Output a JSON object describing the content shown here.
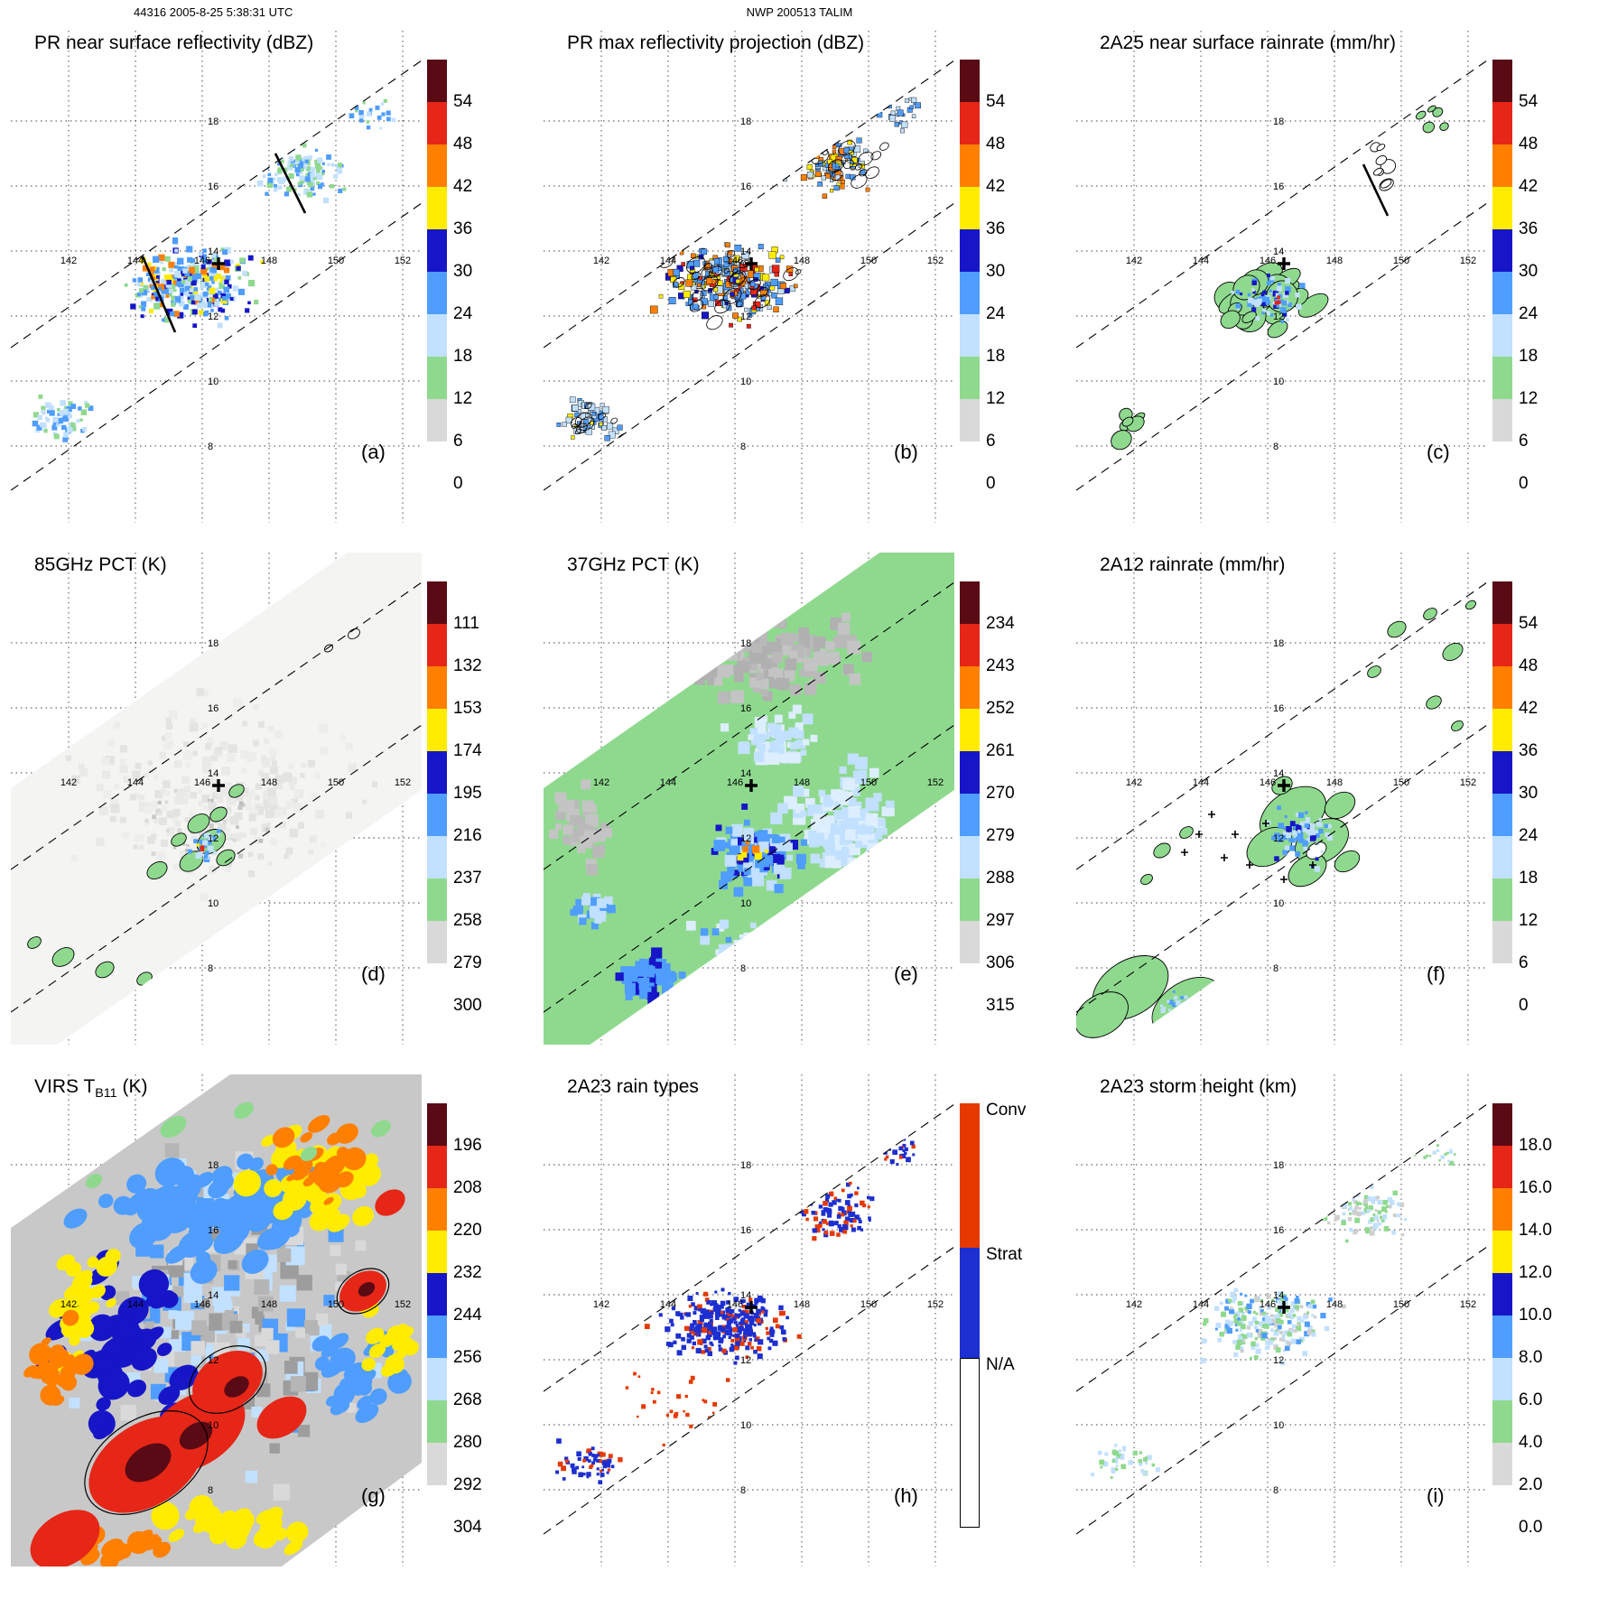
{
  "header": {
    "left": "44316 2005-8-25 5:38:31 UTC",
    "center": "NWP 200513 TALIM"
  },
  "palette": [
    "#5a0a14",
    "#e62617",
    "#ff8000",
    "#ffec00",
    "#1616c8",
    "#4f9dff",
    "#c2e0ff",
    "#8fd98f",
    "#d9d9d9",
    "#ffffff"
  ],
  "axes": {
    "lon": [
      "142",
      "144",
      "146",
      "148",
      "150",
      "152"
    ],
    "lat": [
      "18",
      "16",
      "14",
      "12",
      "10",
      "8"
    ]
  },
  "panels": [
    {
      "id": "a",
      "label": "(a)",
      "title_prefix": "PR near surface reflectivity (dBZ)",
      "title_sub": "",
      "title_suffix": "",
      "colorbar": {
        "labels": [
          "54",
          "48",
          "42",
          "36",
          "30",
          "24",
          "18",
          "12",
          "6",
          "0"
        ]
      }
    },
    {
      "id": "b",
      "label": "(b)",
      "title_prefix": "PR max reflectivity projection (dBZ)",
      "title_sub": "",
      "title_suffix": "",
      "colorbar": {
        "labels": [
          "54",
          "48",
          "42",
          "36",
          "30",
          "24",
          "18",
          "12",
          "6",
          "0"
        ]
      }
    },
    {
      "id": "c",
      "label": "(c)",
      "title_prefix": "2A25 near surface rainrate (mm/hr)",
      "title_sub": "",
      "title_suffix": "",
      "colorbar": {
        "labels": [
          "54",
          "48",
          "42",
          "36",
          "30",
          "24",
          "18",
          "12",
          "6",
          "0"
        ]
      }
    },
    {
      "id": "d",
      "label": "(d)",
      "title_prefix": "85GHz PCT (K)",
      "title_sub": "",
      "title_suffix": "",
      "colorbar": {
        "labels": [
          "111",
          "132",
          "153",
          "174",
          "195",
          "216",
          "237",
          "258",
          "279",
          "300"
        ]
      }
    },
    {
      "id": "e",
      "label": "(e)",
      "title_prefix": "37GHz PCT (K)",
      "title_sub": "",
      "title_suffix": "",
      "colorbar": {
        "labels": [
          "234",
          "243",
          "252",
          "261",
          "270",
          "279",
          "288",
          "297",
          "306",
          "315"
        ]
      }
    },
    {
      "id": "f",
      "label": "(f)",
      "title_prefix": "2A12 rainrate (mm/hr)",
      "title_sub": "",
      "title_suffix": "",
      "colorbar": {
        "labels": [
          "54",
          "48",
          "42",
          "36",
          "30",
          "24",
          "18",
          "12",
          "6",
          "0"
        ]
      }
    },
    {
      "id": "g",
      "label": "(g)",
      "title_prefix": "VIRS T",
      "title_sub": "B11",
      "title_suffix": " (K)",
      "colorbar": {
        "labels": [
          "196",
          "208",
          "220",
          "232",
          "244",
          "256",
          "268",
          "280",
          "292",
          "304"
        ]
      }
    },
    {
      "id": "h",
      "label": "(h)",
      "title_prefix": "2A23 rain types",
      "title_sub": "",
      "title_suffix": "",
      "colorbar": {
        "labels": [
          "Conv",
          "Strat",
          "N/A"
        ],
        "colors": [
          "#e63900",
          "#1d2fd0",
          "#ffffff"
        ]
      }
    },
    {
      "id": "i",
      "label": "(i)",
      "title_prefix": "2A23 storm height (km)",
      "title_sub": "",
      "title_suffix": "",
      "colorbar": {
        "labels": [
          "18.0",
          "16.0",
          "14.0",
          "12.0",
          "10.0",
          "8.0",
          "6.0",
          "4.0",
          "2.0",
          "0.0"
        ]
      }
    }
  ],
  "chart_data": [
    {
      "panel": "(a)",
      "type": "heatmap",
      "title": "PR near surface reflectivity (dBZ)",
      "units": "dBZ",
      "colorbar_ticks": [
        54,
        48,
        42,
        36,
        30,
        24,
        18,
        12,
        6,
        0
      ],
      "colorbar_range": [
        0,
        54
      ],
      "lon_ticks": [
        142,
        144,
        146,
        148,
        150,
        152
      ],
      "lat_ticks": [
        18,
        16,
        14,
        12,
        10,
        8
      ],
      "storm_center_lonlat": [
        146.5,
        13.5
      ],
      "swath": "narrow PR swath bounded by dashed lines, lower-left to upper-right",
      "grid": true,
      "legend_position": "right"
    },
    {
      "panel": "(b)",
      "type": "heatmap",
      "title": "PR max reflectivity projection (dBZ)",
      "units": "dBZ",
      "colorbar_ticks": [
        54,
        48,
        42,
        36,
        30,
        24,
        18,
        12,
        6,
        0
      ],
      "colorbar_range": [
        0,
        54
      ],
      "lon_ticks": [
        142,
        144,
        146,
        148,
        150,
        152
      ],
      "lat_ticks": [
        18,
        16,
        14,
        12,
        10,
        8
      ],
      "storm_center_lonlat": [
        146.5,
        13.5
      ],
      "swath": "narrow PR swath, contoured echoes",
      "grid": true,
      "legend_position": "right"
    },
    {
      "panel": "(c)",
      "type": "heatmap",
      "title": "2A25 near surface rainrate (mm/hr)",
      "units": "mm/hr",
      "colorbar_ticks": [
        54,
        48,
        42,
        36,
        30,
        24,
        18,
        12,
        6,
        0
      ],
      "colorbar_range": [
        0,
        54
      ],
      "lon_ticks": [
        142,
        144,
        146,
        148,
        150,
        152
      ],
      "lat_ticks": [
        18,
        16,
        14,
        12,
        10,
        8
      ],
      "storm_center_lonlat": [
        146.5,
        13.5
      ],
      "swath": "narrow PR swath, green light-rain regions outlined in black",
      "grid": true,
      "legend_position": "right"
    },
    {
      "panel": "(d)",
      "type": "heatmap",
      "title": "85GHz PCT (K)",
      "units": "K",
      "colorbar_ticks": [
        111,
        132,
        153,
        174,
        195,
        216,
        237,
        258,
        279,
        300
      ],
      "colorbar_range": [
        111,
        300
      ],
      "lon_ticks": [
        142,
        144,
        146,
        148,
        150,
        152
      ],
      "lat_ticks": [
        18,
        16,
        14,
        12,
        10,
        8
      ],
      "storm_center_lonlat": [
        146.5,
        13.5
      ],
      "swath": "wide TMI swath; mostly warm (white/gray) with cold ice-scattering cells (green/blue/red) near storm center",
      "grid": true,
      "legend_position": "right"
    },
    {
      "panel": "(e)",
      "type": "heatmap",
      "title": "37GHz PCT (K)",
      "units": "K",
      "colorbar_ticks": [
        234,
        243,
        252,
        261,
        270,
        279,
        288,
        297,
        306,
        315
      ],
      "colorbar_range": [
        234,
        315
      ],
      "lon_ticks": [
        142,
        144,
        146,
        148,
        150,
        152
      ],
      "lat_ticks": [
        18,
        16,
        14,
        12,
        10,
        8
      ],
      "storm_center_lonlat": [
        146.5,
        13.5
      ],
      "swath": "wide TMI swath; ocean background green (~288 K), land/warm gray, emission signal blue with yellow cores near center",
      "grid": true,
      "legend_position": "right"
    },
    {
      "panel": "(f)",
      "type": "heatmap",
      "title": "2A12 rainrate (mm/hr)",
      "units": "mm/hr",
      "colorbar_ticks": [
        54,
        48,
        42,
        36,
        30,
        24,
        18,
        12,
        6,
        0
      ],
      "colorbar_range": [
        0,
        54
      ],
      "lon_ticks": [
        142,
        144,
        146,
        148,
        150,
        152
      ],
      "lat_ticks": [
        18,
        16,
        14,
        12,
        10,
        8
      ],
      "storm_center_lonlat": [
        146.5,
        13.5
      ],
      "swath": "wide TMI swath; green light rain areas outlined in black, blue heavier rain near center, black cross symbols",
      "grid": true,
      "legend_position": "right"
    },
    {
      "panel": "(g)",
      "type": "heatmap",
      "title": "VIRS TB11 (K)",
      "units": "K",
      "colorbar_ticks": [
        196,
        208,
        220,
        232,
        244,
        256,
        268,
        280,
        292,
        304
      ],
      "colorbar_range": [
        196,
        304
      ],
      "lon_ticks": [
        142,
        144,
        146,
        148,
        150,
        152
      ],
      "lat_ticks": [
        18,
        16,
        14,
        12,
        10,
        8
      ],
      "swath": "full VIRS swath; cold cloud tops red/dark-red (<208 K) over storm, warm gray/blue elsewhere, black contours",
      "grid": true,
      "legend_position": "right"
    },
    {
      "panel": "(h)",
      "type": "heatmap",
      "title": "2A23 rain types",
      "categories": [
        "Conv",
        "Strat",
        "N/A"
      ],
      "category_colors": [
        "#e63900",
        "#1d2fd0",
        "#ffffff"
      ],
      "lon_ticks": [
        142,
        144,
        146,
        148,
        150,
        152
      ],
      "lat_ticks": [
        18,
        16,
        14,
        12,
        10,
        8
      ],
      "storm_center_lonlat": [
        146.5,
        13.5
      ],
      "swath": "narrow PR swath; stratiform (blue) dominant with embedded convective (orange-red) pixels",
      "grid": true,
      "legend_position": "right"
    },
    {
      "panel": "(i)",
      "type": "heatmap",
      "title": "2A23 storm height (km)",
      "units": "km",
      "colorbar_ticks": [
        18,
        16,
        14,
        12,
        10,
        8,
        6,
        4,
        2,
        0
      ],
      "colorbar_range": [
        0,
        18
      ],
      "lon_ticks": [
        142,
        144,
        146,
        148,
        150,
        152
      ],
      "lat_ticks": [
        18,
        16,
        14,
        12,
        10,
        8
      ],
      "storm_center_lonlat": [
        146.5,
        13.5
      ],
      "swath": "narrow PR swath; storm heights mostly 4-10 km (green/light blue/gray pixels)",
      "grid": true,
      "legend_position": "right"
    }
  ]
}
